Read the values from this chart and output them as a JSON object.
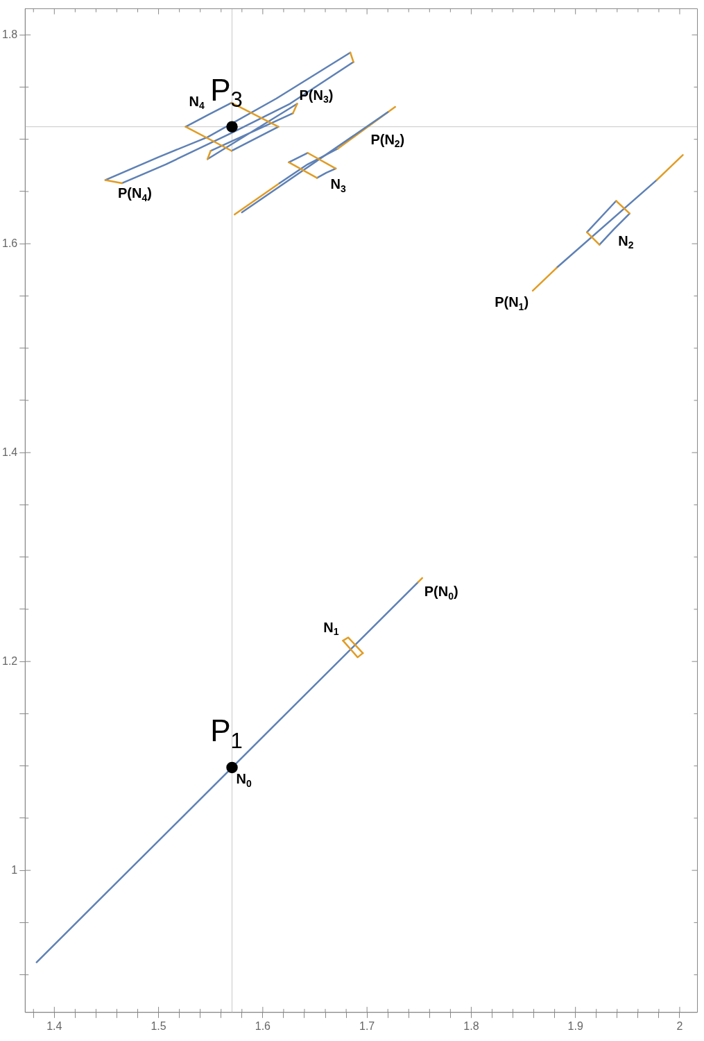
{
  "chart_data": {
    "type": "line",
    "xlim": [
      1.372,
      2.017
    ],
    "ylim": [
      0.864,
      1.825
    ],
    "xticks": [
      {
        "value": 1.38,
        "label": null
      },
      1.4,
      {
        "value": 1.42,
        "label": null
      },
      {
        "value": 1.44,
        "label": null
      },
      {
        "value": 1.46,
        "label": null
      },
      {
        "value": 1.48,
        "label": null
      },
      1.5,
      {
        "value": 1.52,
        "label": null
      },
      {
        "value": 1.54,
        "label": null
      },
      {
        "value": 1.56,
        "label": null
      },
      {
        "value": 1.58,
        "label": null
      },
      1.6,
      {
        "value": 1.62,
        "label": null
      },
      {
        "value": 1.64,
        "label": null
      },
      {
        "value": 1.66,
        "label": null
      },
      {
        "value": 1.68,
        "label": null
      },
      1.7,
      {
        "value": 1.72,
        "label": null
      },
      {
        "value": 1.74,
        "label": null
      },
      {
        "value": 1.76,
        "label": null
      },
      {
        "value": 1.78,
        "label": null
      },
      1.8,
      {
        "value": 1.82,
        "label": null
      },
      {
        "value": 1.84,
        "label": null
      },
      {
        "value": 1.86,
        "label": null
      },
      {
        "value": 1.88,
        "label": null
      },
      1.9,
      {
        "value": 1.92,
        "label": null
      },
      {
        "value": 1.94,
        "label": null
      },
      {
        "value": 1.96,
        "label": null
      },
      {
        "value": 1.98,
        "label": null
      },
      2.0
    ],
    "yticks": [
      {
        "value": 0.9,
        "label": null
      },
      {
        "value": 0.95,
        "label": null
      },
      1.0,
      {
        "value": 1.05,
        "label": null
      },
      {
        "value": 1.1,
        "label": null
      },
      {
        "value": 1.15,
        "label": null
      },
      1.2,
      {
        "value": 1.25,
        "label": null
      },
      {
        "value": 1.3,
        "label": null
      },
      {
        "value": 1.35,
        "label": null
      },
      1.4,
      {
        "value": 1.45,
        "label": null
      },
      {
        "value": 1.5,
        "label": null
      },
      {
        "value": 1.55,
        "label": null
      },
      1.6,
      {
        "value": 1.65,
        "label": null
      },
      {
        "value": 1.7,
        "label": null
      },
      {
        "value": 1.75,
        "label": null
      },
      1.8
    ],
    "grid": false,
    "legend": false,
    "marker": "none",
    "line_style": "solid",
    "ref_lines": [
      {
        "axis": "x",
        "value": 1.5705,
        "color": "#c8c8c8"
      },
      {
        "axis": "y",
        "value": 1.712,
        "color": "#c8c8c8"
      }
    ],
    "series": [
      {
        "color": "#5e81b5",
        "x": [
          1.383,
          1.749
        ],
        "values": [
          0.912,
          1.276
        ]
      },
      {
        "color": "#e19c24",
        "x": [
          1.749,
          1.753
        ],
        "values": [
          1.276,
          1.28
        ]
      },
      {
        "color": "#e19c24",
        "x": [
          1.677,
          1.682,
          1.696
        ],
        "values": [
          1.22,
          1.223,
          1.208
        ]
      },
      {
        "color": "#e19c24",
        "x": [
          1.677,
          1.691,
          1.696
        ],
        "values": [
          1.22,
          1.204,
          1.208
        ]
      },
      {
        "color": "#5e81b5",
        "x": [
          1.882,
          1.978
        ],
        "values": [
          1.577,
          1.661
        ]
      },
      {
        "color": "#5e81b5",
        "x": [
          1.911,
          1.939,
          null,
          1.923,
          1.937,
          1.952
        ],
        "values": [
          1.611,
          1.641,
          null,
          1.599,
          1.614,
          1.629
        ]
      },
      {
        "color": "#e19c24",
        "x": [
          1.939,
          1.952,
          null,
          1.911,
          1.923
        ],
        "values": [
          1.641,
          1.629,
          null,
          1.611,
          1.599
        ]
      },
      {
        "color": "#e19c24",
        "x": [
          1.859,
          1.882
        ],
        "values": [
          1.555,
          1.577
        ]
      },
      {
        "color": "#e19c24",
        "x": [
          1.978,
          2.003
        ],
        "values": [
          1.661,
          1.685
        ]
      },
      {
        "color": "#e19c24",
        "x": [
          1.573,
          1.616
        ],
        "values": [
          1.628,
          1.658
        ]
      },
      {
        "color": "#5e81b5",
        "x": [
          1.616,
          1.643,
          1.672
        ],
        "values": [
          1.658,
          1.676,
          1.691
        ]
      },
      {
        "color": "#e19c24",
        "x": [
          1.672,
          1.727
        ],
        "values": [
          1.691,
          1.731
        ]
      },
      {
        "color": "#5e81b5",
        "x": [
          1.58,
          1.72
        ],
        "values": [
          1.63,
          1.726
        ]
      },
      {
        "color": "#5e81b5",
        "x": [
          1.625,
          1.643,
          null,
          1.652,
          1.661,
          1.67
        ],
        "values": [
          1.678,
          1.687,
          null,
          1.663,
          1.668,
          1.672
        ]
      },
      {
        "color": "#e19c24",
        "x": [
          1.643,
          1.67,
          null,
          1.625,
          1.652
        ],
        "values": [
          1.687,
          1.672,
          null,
          1.678,
          1.663
        ]
      },
      {
        "color": "#5e81b5",
        "x": [
          1.449,
          1.5,
          1.547,
          1.613,
          1.684
        ],
        "values": [
          1.661,
          1.683,
          1.702,
          1.739,
          1.783
        ]
      },
      {
        "color": "#5e81b5",
        "x": [
          1.687,
          1.626,
          1.57,
          1.507,
          1.465
        ],
        "values": [
          1.774,
          1.734,
          1.706,
          1.676,
          1.658
        ]
      },
      {
        "color": "#e19c24",
        "x": [
          1.449,
          1.465
        ],
        "values": [
          1.661,
          1.658
        ]
      },
      {
        "color": "#e19c24",
        "x": [
          1.684,
          1.687
        ],
        "values": [
          1.783,
          1.774
        ]
      },
      {
        "color": "#5e81b5",
        "x": [
          1.547,
          1.633,
          null,
          1.629,
          1.55
        ],
        "values": [
          1.681,
          1.734,
          null,
          1.725,
          1.689
        ]
      },
      {
        "color": "#e19c24",
        "x": [
          1.633,
          1.629,
          null,
          1.547,
          1.55
        ],
        "values": [
          1.734,
          1.725,
          null,
          1.681,
          1.689
        ]
      },
      {
        "color": "#5e81b5",
        "x": [
          1.526,
          1.548,
          1.57,
          null,
          1.57,
          1.615
        ],
        "values": [
          1.712,
          1.7236,
          1.735,
          null,
          1.689,
          1.712
        ]
      },
      {
        "color": "#e19c24",
        "x": [
          1.57,
          1.615
        ],
        "values": [
          1.735,
          1.712
        ]
      },
      {
        "color": "#e19c24",
        "x": [
          1.526,
          1.57
        ],
        "values": [
          1.712,
          1.689
        ]
      },
      {
        "type": "scatter",
        "name": "P$_{1}$",
        "color": "#000000",
        "marker": "circle",
        "x": [
          1.5705
        ],
        "values": [
          1.0985
        ]
      },
      {
        "type": "scatter",
        "name": "P$_{3}$",
        "color": "#000000",
        "marker": "circle",
        "x": [
          1.5705
        ],
        "values": [
          1.712
        ]
      }
    ],
    "annotations": [
      {
        "text": "N$_{4}$",
        "x": 1.548,
        "y": 1.7236
      },
      {
        "text": "P(N$_{3}$)",
        "x": 1.631,
        "y": 1.7295
      },
      {
        "text": "P(N$_{2}$)",
        "x": 1.6995,
        "y": 1.711
      },
      {
        "text": "N$_{3}$",
        "x": 1.661,
        "y": 1.668
      },
      {
        "text": "P(N$_{4}$)",
        "x": 1.457,
        "y": 1.6595
      },
      {
        "text": "N$_{2}$",
        "x": 1.937,
        "y": 1.614
      },
      {
        "text": "P(N$_{1}$)",
        "x": 1.859,
        "y": 1.555
      },
      {
        "text": "P(N$_{0}$)",
        "x": 1.751,
        "y": 1.278
      },
      {
        "text": "N$_{1}$",
        "x": 1.677,
        "y": 1.22
      },
      {
        "text": "N$_{0}$",
        "x": 1.5705,
        "y": 1.0985
      }
    ]
  }
}
